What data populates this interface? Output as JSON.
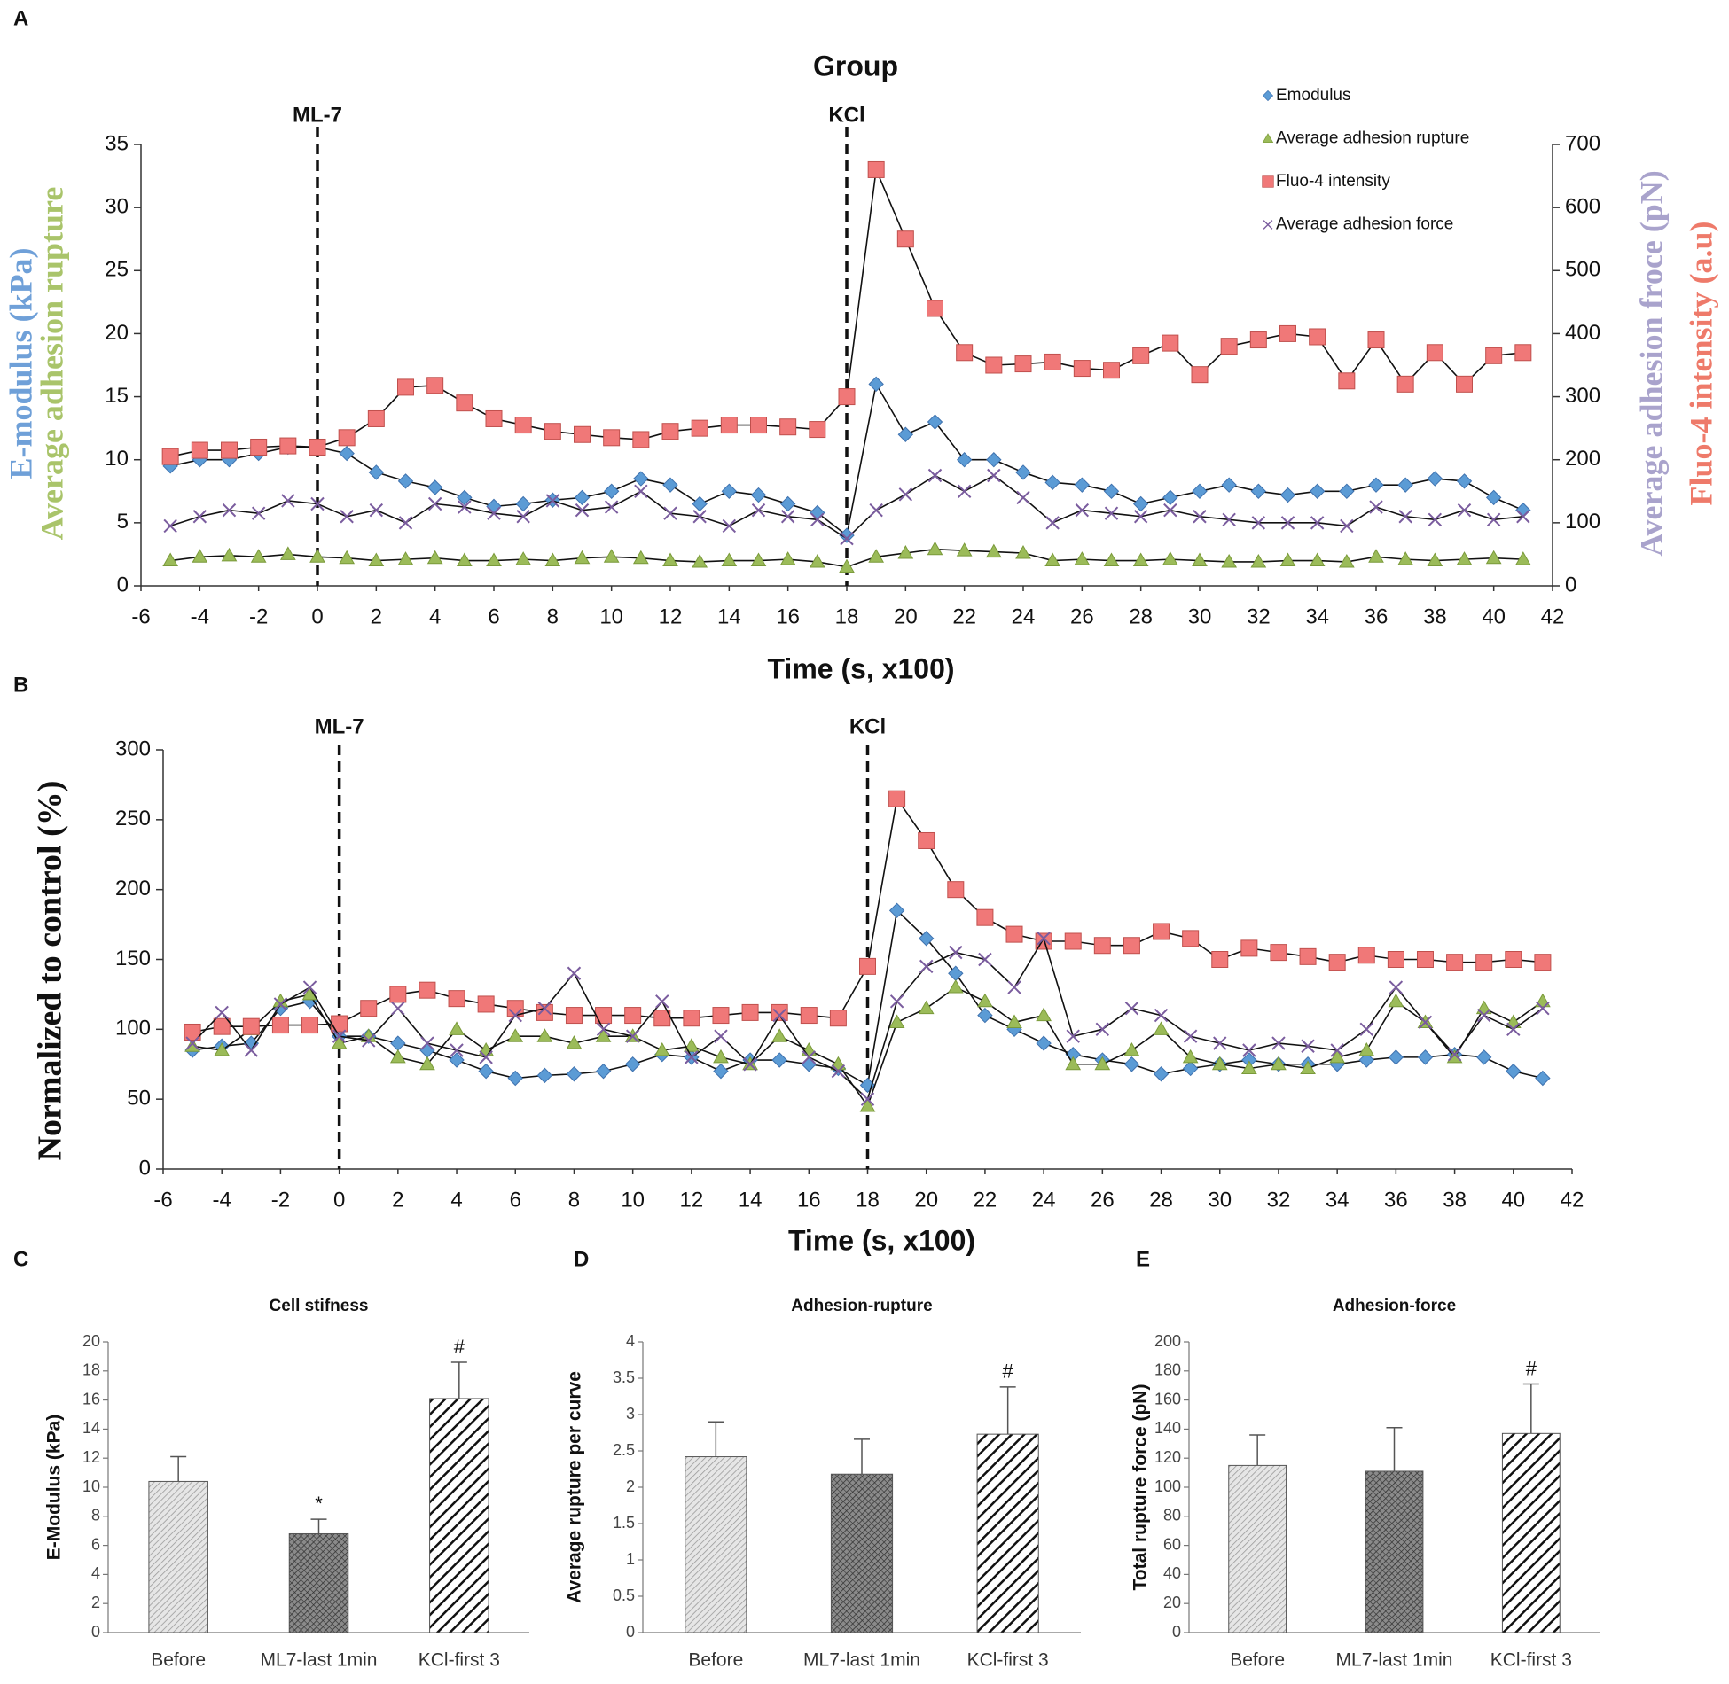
{
  "chart_data": [
    {
      "type": "line",
      "panel": "A",
      "title": "Group",
      "xlabel": "Time (s, x100)",
      "ylabels": [
        {
          "text": "E-modulus (kPa)",
          "color": "#6fa0d8"
        },
        {
          "text": "Average adhesion rupture",
          "color": "#a9c46a"
        }
      ],
      "y2labels": [
        {
          "text": "Average adhesion froce (pN)",
          "color": "#a9a3cc"
        },
        {
          "text": "Fluo-4 intensity (a.u)",
          "color": "#ee7a6a"
        }
      ],
      "xlim": [
        -6,
        42
      ],
      "xticks": [
        -6,
        -4,
        -2,
        0,
        2,
        4,
        6,
        8,
        10,
        12,
        14,
        16,
        18,
        20,
        22,
        24,
        26,
        28,
        30,
        32,
        34,
        36,
        38,
        40,
        42
      ],
      "ylim": [
        0,
        35
      ],
      "yticks": [
        0,
        5,
        10,
        15,
        20,
        25,
        30,
        35
      ],
      "y2lim": [
        0,
        700
      ],
      "y2ticks": [
        0,
        100,
        200,
        300,
        400,
        500,
        600,
        700
      ],
      "legend": "upper right",
      "annotations": [
        {
          "text": "ML-7",
          "x": 0
        },
        {
          "text": "KCl",
          "x": 18
        }
      ],
      "x": [
        -5,
        -4,
        -3,
        -2,
        -1,
        0,
        1,
        2,
        3,
        4,
        5,
        6,
        7,
        8,
        9,
        10,
        11,
        12,
        13,
        14,
        15,
        16,
        17,
        18,
        19,
        20,
        21,
        22,
        23,
        24,
        25,
        26,
        27,
        28,
        29,
        30,
        31,
        32,
        33,
        34,
        35,
        36,
        37,
        38,
        39,
        40,
        41
      ],
      "series": [
        {
          "name": "Emodulus",
          "color": "#5b9bd5",
          "marker": "diamond",
          "values": [
            9.5,
            10,
            10,
            10.5,
            11,
            11,
            10.5,
            9,
            8.3,
            7.8,
            7,
            6.3,
            6.5,
            6.8,
            7,
            7.5,
            8.5,
            8,
            6.5,
            7.5,
            7.2,
            6.5,
            5.8,
            4,
            16,
            12,
            13,
            10,
            10,
            9,
            8.2,
            8,
            7.5,
            6.5,
            7,
            7.5,
            8,
            7.5,
            7.2,
            7.5,
            7.5,
            8,
            8,
            8.5,
            8.3,
            7,
            6
          ]
        },
        {
          "name": "Average adhesion rupture",
          "color": "#9bbb59",
          "marker": "triangle",
          "values": [
            2,
            2.3,
            2.4,
            2.3,
            2.5,
            2.3,
            2.2,
            2,
            2.1,
            2.2,
            2,
            2,
            2.1,
            2,
            2.2,
            2.3,
            2.2,
            2,
            1.9,
            2,
            2,
            2.1,
            1.9,
            1.5,
            2.3,
            2.6,
            2.9,
            2.8,
            2.7,
            2.6,
            2,
            2.1,
            2,
            2,
            2.1,
            2,
            1.9,
            1.9,
            2,
            2,
            1.9,
            2.3,
            2.1,
            2,
            2.1,
            2.2,
            2.1
          ]
        },
        {
          "name": "Fluo-4 intensity",
          "color": "#f07878",
          "marker": "square",
          "axis": "y2",
          "values": [
            205,
            215,
            215,
            220,
            222,
            220,
            235,
            265,
            315,
            318,
            290,
            265,
            255,
            245,
            240,
            235,
            232,
            245,
            250,
            255,
            255,
            252,
            248,
            300,
            660,
            550,
            440,
            370,
            350,
            352,
            355,
            345,
            342,
            365,
            385,
            335,
            380,
            390,
            400,
            395,
            325,
            390,
            320,
            370,
            320,
            365,
            370
          ]
        },
        {
          "name": "Average adhesion force",
          "color": "#7a5c9e",
          "marker": "x",
          "axis": "y2",
          "values": [
            95,
            110,
            120,
            115,
            135,
            130,
            110,
            120,
            100,
            130,
            125,
            115,
            110,
            135,
            120,
            125,
            150,
            115,
            110,
            95,
            120,
            110,
            105,
            75,
            120,
            145,
            175,
            150,
            175,
            140,
            100,
            120,
            115,
            110,
            120,
            110,
            105,
            100,
            100,
            100,
            95,
            125,
            110,
            105,
            120,
            105,
            110
          ]
        }
      ]
    },
    {
      "type": "line",
      "panel": "B",
      "xlabel": "Time (s, x100)",
      "ylabels": [
        {
          "text": "Normalized to control (%)",
          "color": "#111111"
        }
      ],
      "xlim": [
        -6,
        42
      ],
      "xticks": [
        -6,
        -4,
        -2,
        0,
        2,
        4,
        6,
        8,
        10,
        12,
        14,
        16,
        18,
        20,
        22,
        24,
        26,
        28,
        30,
        32,
        34,
        36,
        38,
        40,
        42
      ],
      "ylim": [
        0,
        300
      ],
      "yticks": [
        0,
        50,
        100,
        150,
        200,
        250,
        300
      ],
      "annotations": [
        {
          "text": "ML-7",
          "x": 0
        },
        {
          "text": "KCl",
          "x": 18
        }
      ],
      "x": [
        -5,
        -4,
        -3,
        -2,
        -1,
        0,
        1,
        2,
        3,
        4,
        5,
        6,
        7,
        8,
        9,
        10,
        11,
        12,
        13,
        14,
        15,
        16,
        17,
        18,
        19,
        20,
        21,
        22,
        23,
        24,
        25,
        26,
        27,
        28,
        29,
        30,
        31,
        32,
        33,
        34,
        35,
        36,
        37,
        38,
        39,
        40,
        41
      ],
      "series": [
        {
          "color": "#5b9bd5",
          "marker": "diamond",
          "values": [
            85,
            88,
            90,
            115,
            120,
            95,
            95,
            90,
            85,
            78,
            70,
            65,
            67,
            68,
            70,
            75,
            82,
            80,
            70,
            78,
            78,
            75,
            72,
            60,
            185,
            165,
            140,
            110,
            100,
            90,
            82,
            78,
            75,
            68,
            72,
            75,
            78,
            75,
            75,
            75,
            78,
            80,
            80,
            82,
            80,
            70,
            65
          ]
        },
        {
          "color": "#9bbb59",
          "marker": "triangle",
          "values": [
            88,
            85,
            100,
            120,
            125,
            90,
            95,
            80,
            75,
            100,
            85,
            95,
            95,
            90,
            95,
            95,
            85,
            88,
            80,
            75,
            95,
            85,
            75,
            45,
            105,
            115,
            130,
            120,
            105,
            110,
            75,
            75,
            85,
            100,
            80,
            75,
            72,
            75,
            72,
            80,
            85,
            120,
            105,
            80,
            115,
            105,
            120
          ]
        },
        {
          "color": "#f07878",
          "marker": "square",
          "values": [
            98,
            102,
            102,
            103,
            103,
            104,
            115,
            125,
            128,
            122,
            118,
            115,
            112,
            110,
            110,
            110,
            108,
            108,
            110,
            112,
            112,
            110,
            108,
            145,
            265,
            235,
            200,
            180,
            168,
            163,
            163,
            160,
            160,
            170,
            165,
            150,
            158,
            155,
            152,
            148,
            153,
            150,
            150,
            148,
            148,
            150,
            148
          ]
        },
        {
          "color": "#7a5c9e",
          "marker": "x",
          "values": [
            90,
            112,
            85,
            118,
            130,
            95,
            92,
            115,
            90,
            85,
            80,
            110,
            115,
            140,
            100,
            95,
            120,
            80,
            95,
            75,
            110,
            80,
            70,
            50,
            120,
            145,
            155,
            150,
            130,
            165,
            95,
            100,
            115,
            110,
            95,
            90,
            85,
            90,
            88,
            85,
            100,
            130,
            105,
            82,
            110,
            100,
            115
          ]
        }
      ]
    },
    {
      "type": "bar",
      "panel": "C",
      "title": "Cell stifness",
      "ylabel": "E-Modulus    (kPa)",
      "categories": [
        "Before",
        "ML7-last 1min",
        "KCl-first 3"
      ],
      "values": [
        10.4,
        6.8,
        16.1
      ],
      "errors": [
        1.7,
        1.0,
        2.5
      ],
      "ylim": [
        0,
        20
      ],
      "yticks": [
        0,
        2,
        4,
        6,
        8,
        10,
        12,
        14,
        16,
        18,
        20
      ],
      "annotations": [
        {
          "category": "ML7-last 1min",
          "text": "*"
        },
        {
          "category": "KCl-first 3",
          "text": "#"
        }
      ]
    },
    {
      "type": "bar",
      "panel": "D",
      "title": "Adhesion-rupture",
      "ylabel": "Average rupture per curve",
      "categories": [
        "Before",
        "ML7-last 1min",
        "KCl-first 3"
      ],
      "values": [
        2.42,
        2.18,
        2.73
      ],
      "errors": [
        0.48,
        0.48,
        0.65
      ],
      "ylim": [
        0,
        4
      ],
      "yticks": [
        0,
        0.5,
        1,
        1.5,
        2,
        2.5,
        3,
        3.5,
        4
      ],
      "annotations": [
        {
          "category": "KCl-first 3",
          "text": "#"
        }
      ]
    },
    {
      "type": "bar",
      "panel": "E",
      "title": "Adhesion-force",
      "ylabel": "Total rupture force (pN)",
      "categories": [
        "Before",
        "ML7-last 1min",
        "KCl-first 3"
      ],
      "values": [
        115,
        111,
        137
      ],
      "errors": [
        21,
        30,
        34
      ],
      "ylim": [
        0,
        200
      ],
      "yticks": [
        0,
        20,
        40,
        60,
        80,
        100,
        120,
        140,
        160,
        180,
        200
      ],
      "annotations": [
        {
          "category": "KCl-first 3",
          "text": "#"
        }
      ]
    }
  ]
}
